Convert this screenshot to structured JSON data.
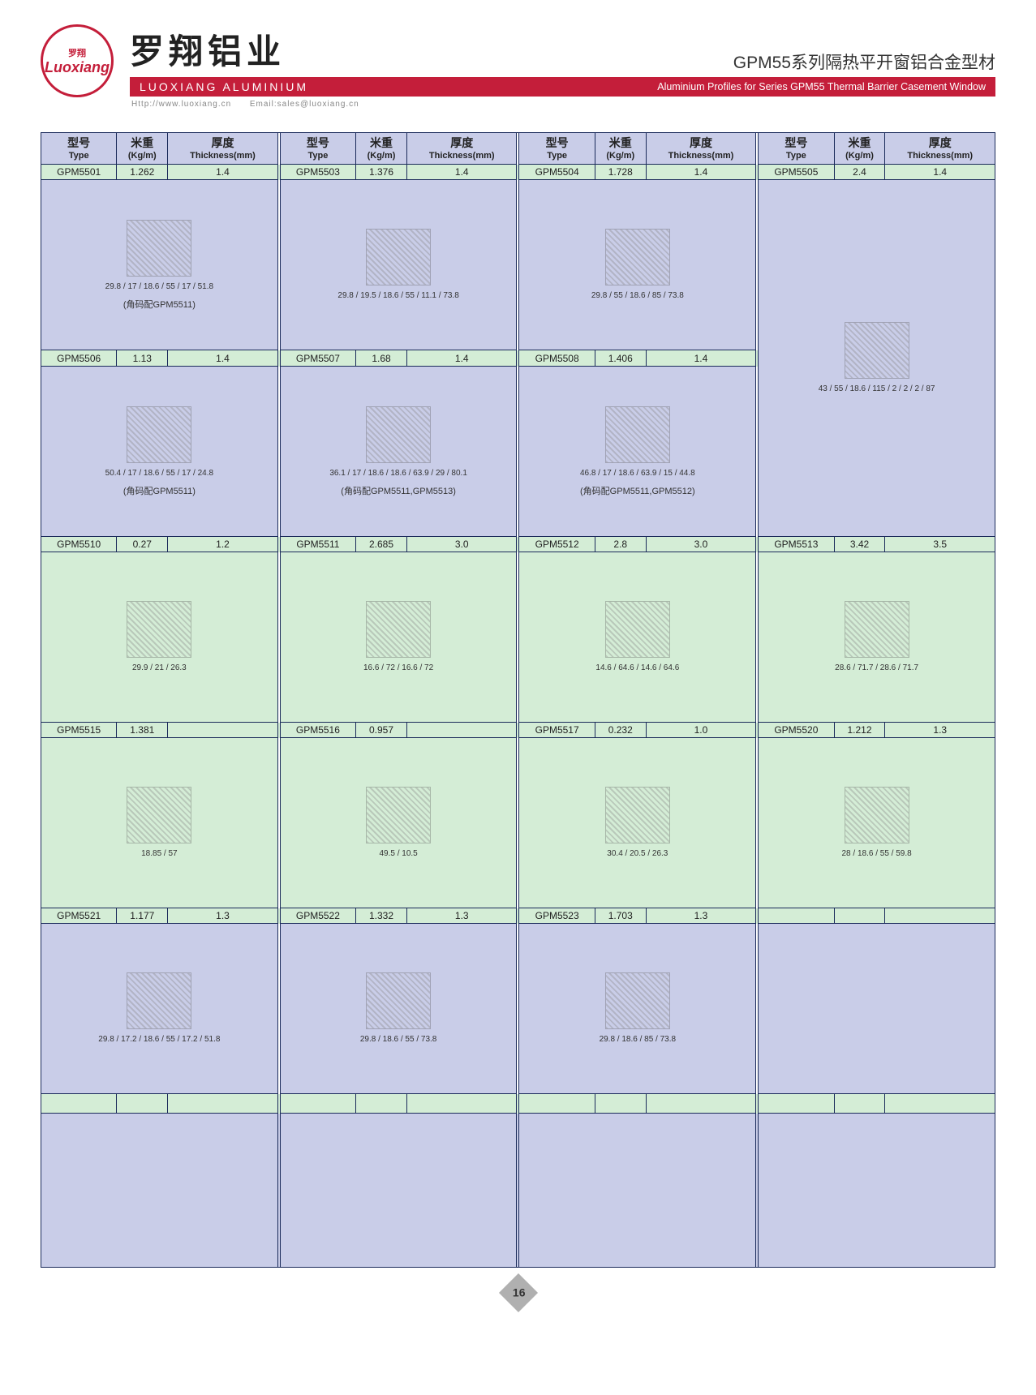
{
  "header": {
    "logo_top": "罗翔",
    "logo_script": "Luoxiang",
    "brand_cn": "罗翔铝业",
    "brand_en": "LUOXIANG ALUMINIUM",
    "series_title": "GPM55系列隔热平开窗铝合金型材",
    "series_sub": "Aluminium Profiles for Series GPM55 Thermal Barrier Casement Window",
    "url": "Http://www.luoxiang.cn",
    "email": "Email:sales@luoxiang.cn"
  },
  "columns": {
    "type_cn": "型号",
    "type_en": "Type",
    "weight_cn": "米重",
    "weight_en": "(Kg/m)",
    "thick_cn": "厚度",
    "thick_en": "Thickness(mm)"
  },
  "rows": [
    [
      {
        "type": "GPM5501",
        "w": "1.262",
        "t": "1.4",
        "bg": "purple",
        "note": "(角码配GPM5511)",
        "dims": "29.8 / 17 / 18.6 / 55 / 17 / 51.8"
      },
      {
        "type": "GPM5503",
        "w": "1.376",
        "t": "1.4",
        "bg": "purple",
        "dims": "29.8 / 19.5 / 18.6 / 55 / 11.1 / 73.8"
      },
      {
        "type": "GPM5504",
        "w": "1.728",
        "t": "1.4",
        "bg": "purple",
        "dims": "29.8 / 55 / 18.6 / 85 / 73.8"
      },
      {
        "type": "GPM5505",
        "w": "2.4",
        "t": "1.4",
        "bg": "purple",
        "tall": true,
        "dims": "43 / 55 / 18.6 / 115 / 2 / 2 / 2 / 87"
      }
    ],
    [
      {
        "type": "GPM5506",
        "w": "1.13",
        "t": "1.4",
        "bg": "purple",
        "note": "(角码配GPM5511)",
        "dims": "50.4 / 17 / 18.6 / 55 / 17 / 24.8"
      },
      {
        "type": "GPM5507",
        "w": "1.68",
        "t": "1.4",
        "bg": "purple",
        "note": "(角码配GPM5511,GPM5513)",
        "dims": "36.1 / 17 / 18.6 / 18.6 / 63.9 / 29 / 80.1"
      },
      {
        "type": "GPM5508",
        "w": "1.406",
        "t": "1.4",
        "bg": "purple",
        "note": "(角码配GPM5511,GPM5512)",
        "dims": "46.8 / 17 / 18.6 / 63.9 / 15 / 44.8"
      },
      null
    ],
    [
      {
        "type": "GPM5510",
        "w": "0.27",
        "t": "1.2",
        "bg": "green",
        "dims": "29.9 / 21 / 26.3"
      },
      {
        "type": "GPM5511",
        "w": "2.685",
        "t": "3.0",
        "bg": "green",
        "dims": "16.6 / 72 / 16.6 / 72"
      },
      {
        "type": "GPM5512",
        "w": "2.8",
        "t": "3.0",
        "bg": "green",
        "dims": "14.6 / 64.6 / 14.6 / 64.6"
      },
      {
        "type": "GPM5513",
        "w": "3.42",
        "t": "3.5",
        "bg": "green",
        "dims": "28.6 / 71.7 / 28.6 / 71.7"
      }
    ],
    [
      {
        "type": "GPM5515",
        "w": "1.381",
        "t": "",
        "bg": "green",
        "dims": "18.85 / 57"
      },
      {
        "type": "GPM5516",
        "w": "0.957",
        "t": "",
        "bg": "green",
        "dims": "49.5 / 10.5"
      },
      {
        "type": "GPM5517",
        "w": "0.232",
        "t": "1.0",
        "bg": "green",
        "dims": "30.4 / 20.5 / 26.3"
      },
      {
        "type": "GPM5520",
        "w": "1.212",
        "t": "1.3",
        "bg": "green",
        "dims": "28 / 18.6 / 55 / 59.8"
      }
    ],
    [
      {
        "type": "GPM5521",
        "w": "1.177",
        "t": "1.3",
        "bg": "purple",
        "dims": "29.8 / 17.2 / 18.6 / 55 / 17.2 / 51.8"
      },
      {
        "type": "GPM5522",
        "w": "1.332",
        "t": "1.3",
        "bg": "purple",
        "dims": "29.8 / 18.6 / 55 / 73.8"
      },
      {
        "type": "GPM5523",
        "w": "1.703",
        "t": "1.3",
        "bg": "purple",
        "dims": "29.8 / 18.6 / 85 / 73.8"
      },
      {
        "type": "",
        "w": "",
        "t": "",
        "bg": "purple",
        "empty": true
      }
    ]
  ],
  "page_number": "16"
}
